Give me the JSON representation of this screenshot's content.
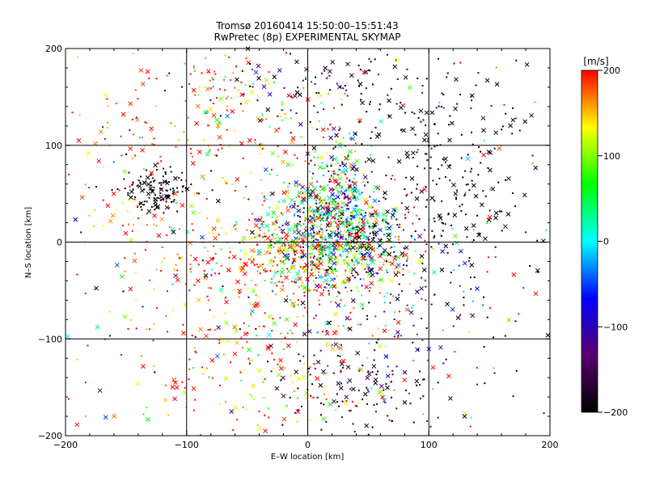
{
  "chart_data": {
    "type": "scatter",
    "title": "Tromsø 20160414 15:50:00–15:51:43",
    "subtitle": "RwPretec (8p) EXPERIMENTAL SKYMAP",
    "xlabel": "E–W location [km]",
    "ylabel": "N–S location [km]",
    "xlim": [
      -200,
      200
    ],
    "ylim": [
      -200,
      200
    ],
    "xticks": [
      "−200",
      "−100",
      "0",
      "100",
      "200"
    ],
    "yticks": [
      "200",
      "100",
      "0",
      "−100",
      "−200"
    ],
    "grid": true,
    "colorbar": {
      "unit": "[m/s]",
      "range": [
        -200,
        200
      ],
      "ticks": [
        "200",
        "100",
        "0",
        "−100",
        "−200"
      ],
      "colors": [
        "#000000",
        "#5a006e",
        "#0000ff",
        "#00ffff",
        "#00ff00",
        "#ffff00",
        "#ff0000"
      ]
    },
    "markers": [
      "dot",
      "cross"
    ],
    "clusters": [
      {
        "x": 20,
        "y": 5,
        "sx": 30,
        "sy": 25,
        "n": 620,
        "v": 0,
        "spread": 120
      },
      {
        "x": -10,
        "y": -15,
        "sx": 45,
        "sy": 30,
        "n": 420,
        "v": 170,
        "spread": 60
      },
      {
        "x": 25,
        "y": 60,
        "sx": 15,
        "sy": 25,
        "n": 180,
        "v": 30,
        "spread": 110
      },
      {
        "x": 110,
        "y": 60,
        "sx": 45,
        "sy": 60,
        "n": 260,
        "v": -195,
        "spread": 15
      },
      {
        "x": -125,
        "y": 55,
        "sx": 15,
        "sy": 12,
        "n": 120,
        "v": -195,
        "spread": 15
      },
      {
        "x": -100,
        "y": 75,
        "sx": 60,
        "sy": 60,
        "n": 160,
        "v": 180,
        "spread": 40
      },
      {
        "x": -30,
        "y": -120,
        "sx": 60,
        "sy": 40,
        "n": 240,
        "v": 170,
        "spread": 60
      },
      {
        "x": 40,
        "y": -155,
        "sx": 40,
        "sy": 35,
        "n": 120,
        "v": -190,
        "spread": 40
      },
      {
        "x": 80,
        "y": -60,
        "sx": 50,
        "sy": 50,
        "n": 110,
        "v": -100,
        "spread": 100
      },
      {
        "x": 30,
        "y": 160,
        "sx": 60,
        "sy": 30,
        "n": 130,
        "v": -180,
        "spread": 60
      },
      {
        "x": -60,
        "y": 140,
        "sx": 40,
        "sy": 30,
        "n": 110,
        "v": 150,
        "spread": 80
      },
      {
        "x": 0,
        "y": 0,
        "sx": 120,
        "sy": 120,
        "n": 380,
        "v": 60,
        "spread": 260
      }
    ]
  }
}
